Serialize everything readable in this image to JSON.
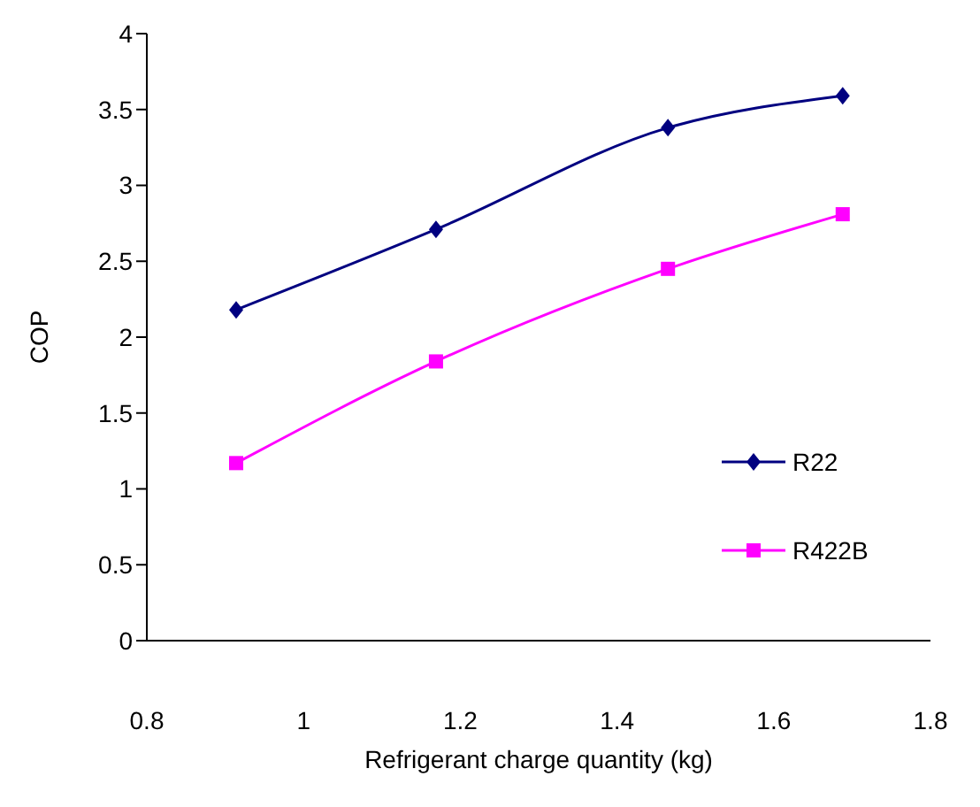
{
  "chart_data": {
    "type": "line",
    "xlabel": "Refrigerant charge quantity (kg)",
    "ylabel": "COP",
    "xlim": [
      0.8,
      1.8
    ],
    "xticks": [
      0.8,
      1,
      1.2,
      1.4,
      1.6,
      1.8
    ],
    "ylim": [
      0,
      4
    ],
    "yticks": [
      0,
      0.5,
      1,
      1.5,
      2,
      2.5,
      3,
      3.5,
      4
    ],
    "grid": false,
    "legend": "right",
    "line_style": "solid",
    "series": [
      {
        "name": "R22",
        "color": "#000080",
        "marker": "diamond",
        "x": [
          0.914,
          1.169,
          1.465,
          1.688
        ],
        "values": [
          2.18,
          2.71,
          3.38,
          3.59
        ]
      },
      {
        "name": "R422B",
        "color": "#ff00ff",
        "marker": "square",
        "x": [
          0.914,
          1.169,
          1.465,
          1.688
        ],
        "values": [
          1.17,
          1.84,
          2.45,
          2.81
        ]
      }
    ]
  }
}
